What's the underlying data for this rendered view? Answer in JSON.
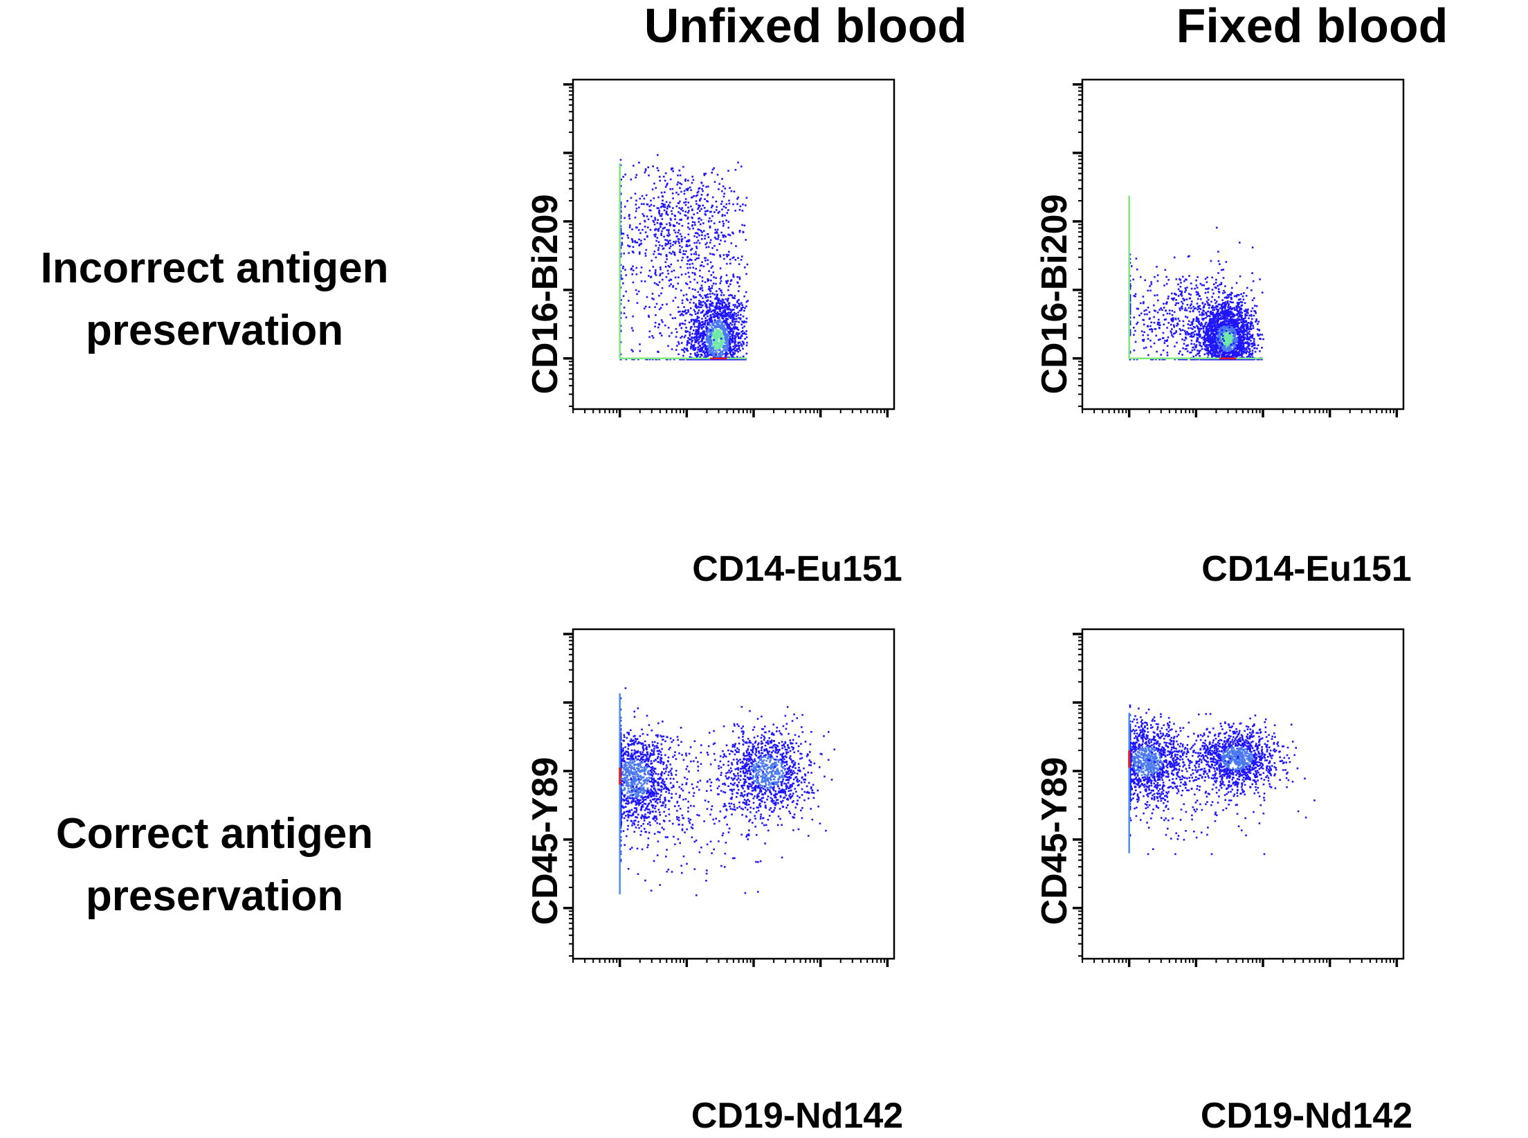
{
  "columns": [
    "Unfixed blood",
    "Fixed blood"
  ],
  "rows": [
    "Incorrect antigen\npreservation",
    "Correct antigen\npreservation"
  ],
  "row_lines": [
    [
      "Incorrect antigen",
      "preservation"
    ],
    [
      "Correct antigen",
      "preservation"
    ]
  ],
  "colors": {
    "low": "#1e14ff",
    "mid": "#4a78f0",
    "high": "#6fe8a8",
    "peak": "#e82010",
    "frame": "#000000"
  },
  "chart_data": [
    {
      "type": "scatter",
      "subtype": "density-dot-plot",
      "column": "Unfixed blood",
      "row": "Incorrect antigen preservation",
      "xlabel": "CD14-Eu151",
      "ylabel": "CD16-Bi209",
      "xscale": "log",
      "yscale": "log",
      "tick_labels": false,
      "xlim": [
        -0.7,
        4.1
      ],
      "ylim": [
        -0.74,
        4.07
      ],
      "major_ticks": [
        0,
        1,
        2,
        3,
        4
      ],
      "populations": [
        {
          "center": [
            1.45,
            0.3
          ],
          "spread": [
            0.22,
            0.35
          ],
          "share": 0.62,
          "clip": [
            0,
            1.9,
            0,
            3
          ]
        },
        {
          "center": [
            0.9,
            2.0
          ],
          "spread": [
            0.55,
            0.45
          ],
          "share": 0.23,
          "clip": [
            0,
            1.9,
            0,
            3
          ]
        },
        {
          "center": [
            0.9,
            1.0
          ],
          "spread": [
            0.6,
            0.8
          ],
          "share": 0.15,
          "clip": [
            0,
            1.9,
            0,
            3
          ]
        }
      ]
    },
    {
      "type": "scatter",
      "subtype": "density-dot-plot",
      "column": "Fixed blood",
      "row": "Incorrect antigen preservation",
      "xlabel": "CD14-Eu151",
      "ylabel": "CD16-Bi209",
      "xscale": "log",
      "yscale": "log",
      "tick_labels": false,
      "xlim": [
        -0.7,
        4.1
      ],
      "ylim": [
        -0.74,
        4.07
      ],
      "major_ticks": [
        0,
        1,
        2,
        3,
        4
      ],
      "populations": [
        {
          "center": [
            1.45,
            0.3
          ],
          "spread": [
            0.2,
            0.25
          ],
          "share": 0.75,
          "clip": [
            0,
            2.0,
            0,
            2.5
          ]
        },
        {
          "center": [
            0.9,
            0.6
          ],
          "spread": [
            0.55,
            0.4
          ],
          "share": 0.25,
          "clip": [
            0,
            2.0,
            0,
            2.5
          ]
        }
      ]
    },
    {
      "type": "scatter",
      "subtype": "density-dot-plot",
      "column": "Unfixed blood",
      "row": "Correct antigen preservation",
      "xlabel": "CD19-Nd142",
      "ylabel": "CD45-Y89",
      "xscale": "log",
      "yscale": "log",
      "tick_labels": false,
      "xlim": [
        -0.7,
        4.1
      ],
      "ylim": [
        -0.74,
        4.07
      ],
      "major_ticks": [
        0,
        1,
        2,
        3,
        4
      ],
      "populations": [
        {
          "center": [
            0.2,
            1.9
          ],
          "spread": [
            0.3,
            0.35
          ],
          "share": 0.48,
          "clip": [
            0,
            3.2,
            0.2,
            3.3
          ]
        },
        {
          "center": [
            2.2,
            2.0
          ],
          "spread": [
            0.32,
            0.3
          ],
          "share": 0.4,
          "clip": [
            0,
            3.2,
            0.2,
            3.3
          ]
        },
        {
          "center": [
            1.2,
            1.5
          ],
          "spread": [
            0.8,
            0.5
          ],
          "share": 0.12,
          "clip": [
            0,
            3.2,
            0.2,
            3.3
          ]
        }
      ]
    },
    {
      "type": "scatter",
      "subtype": "density-dot-plot",
      "column": "Fixed blood",
      "row": "Correct antigen preservation",
      "xlabel": "CD19-Nd142",
      "ylabel": "CD45-Y89",
      "xscale": "log",
      "yscale": "log",
      "tick_labels": false,
      "xlim": [
        -0.7,
        4.1
      ],
      "ylim": [
        -0.74,
        4.07
      ],
      "major_ticks": [
        0,
        1,
        2,
        3,
        4
      ],
      "populations": [
        {
          "center": [
            0.25,
            2.15
          ],
          "spread": [
            0.28,
            0.28
          ],
          "share": 0.45,
          "clip": [
            0,
            3.0,
            0.8,
            3.0
          ]
        },
        {
          "center": [
            1.6,
            2.2
          ],
          "spread": [
            0.3,
            0.22
          ],
          "share": 0.45,
          "clip": [
            0,
            3.0,
            0.8,
            3.0
          ]
        },
        {
          "center": [
            0.9,
            1.8
          ],
          "spread": [
            0.7,
            0.4
          ],
          "share": 0.1,
          "clip": [
            0,
            3.0,
            0.8,
            3.0
          ]
        }
      ]
    }
  ]
}
